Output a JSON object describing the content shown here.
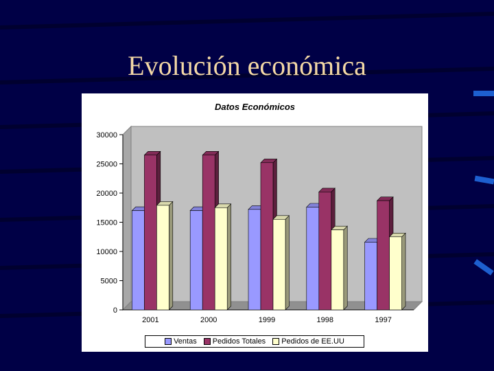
{
  "slide": {
    "title": "Evolución económica",
    "colors": {
      "background": "#000046",
      "title": "#f4d9a6"
    }
  },
  "chart_data": {
    "type": "bar",
    "title": "Datos Económicos",
    "categories": [
      "2001",
      "2000",
      "1999",
      "1998",
      "1997"
    ],
    "series": [
      {
        "name": "Ventas",
        "values": [
          17000,
          17000,
          17200,
          17600,
          11600
        ],
        "color": "#9999ff"
      },
      {
        "name": "Pedidos Totales",
        "values": [
          26500,
          26500,
          25200,
          20200,
          18700
        ],
        "color": "#993366"
      },
      {
        "name": "Pedidos de EE.UU",
        "values": [
          17900,
          17500,
          15500,
          13700,
          12500
        ],
        "color": "#ffffcc"
      }
    ],
    "y_ticks": [
      "30000",
      "25000",
      "20000",
      "15000",
      "10000",
      "5000",
      "0"
    ],
    "ylim": [
      0,
      30000
    ],
    "grid": false,
    "legend_position": "bottom",
    "wall_color": "#c0c0c0",
    "three_d": true
  }
}
